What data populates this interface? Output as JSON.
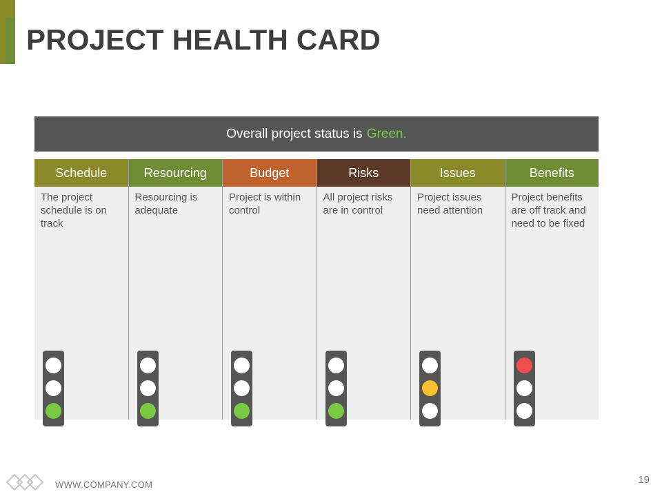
{
  "title": "PROJECT HEALTH CARD",
  "status": {
    "prefix": "Overall project status is",
    "highlight": "Green.",
    "highlight_color": "#7ac943"
  },
  "columns": [
    {
      "header": "Schedule",
      "color": "#8a8a2b",
      "text": "The project schedule is on track",
      "light": "green"
    },
    {
      "header": "Resourcing",
      "color": "#6f8d34",
      "text": "Resourcing is adequate",
      "light": "green"
    },
    {
      "header": "Budget",
      "color": "#c0622d",
      "text": "Project is within control",
      "light": "green"
    },
    {
      "header": "Risks",
      "color": "#5a3a26",
      "text": "All project risks are in control",
      "light": "green"
    },
    {
      "header": "Issues",
      "color": "#8a8a2b",
      "text": "Project issues need attention",
      "light": "amber"
    },
    {
      "header": "Benefits",
      "color": "#6f8d34",
      "text": "Project benefits are off track and need to be fixed",
      "light": "red"
    }
  ],
  "light_colors": {
    "red": "#f04e4e",
    "amber": "#f9c12e",
    "green": "#7ac943",
    "off": "#ffffff"
  },
  "footer": {
    "url": "WWW.COMPANY.COM",
    "page_number": "19",
    "logo_icon": "diamond-chain-logo-icon"
  }
}
